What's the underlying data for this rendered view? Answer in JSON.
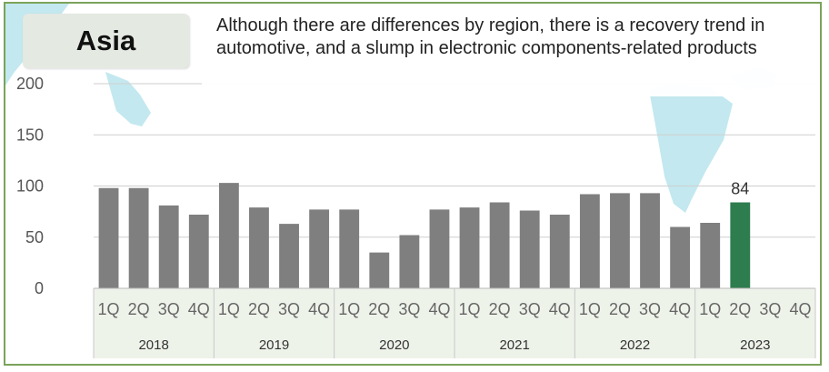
{
  "region": "Asia",
  "summary": "Although there are differences by region, there is a recovery trend in automotive, and a slump in electronic components-related products",
  "colors": {
    "bar": "#7f7f7f",
    "highlight": "#2e7d4f",
    "grid": "#cfcfcf",
    "frame": "#7aa35a",
    "map_water": "#b8e4ec"
  },
  "chart_data": {
    "type": "bar",
    "title": "",
    "xlabel": "",
    "ylabel": "",
    "ylim": [
      0,
      200
    ],
    "yticks": [
      0,
      50,
      100,
      150,
      200
    ],
    "grid": true,
    "years": [
      "2018",
      "2019",
      "2020",
      "2021",
      "2022",
      "2023"
    ],
    "quarters": [
      "1Q",
      "2Q",
      "3Q",
      "4Q"
    ],
    "values": [
      [
        98,
        98,
        81,
        72
      ],
      [
        103,
        79,
        63,
        77
      ],
      [
        77,
        35,
        52,
        77
      ],
      [
        79,
        84,
        76,
        72
      ],
      [
        92,
        93,
        93,
        60
      ],
      [
        64,
        84,
        null,
        null
      ]
    ],
    "highlight": {
      "year": "2023",
      "quarter": "2Q",
      "value": 84
    },
    "data_labels": [
      {
        "year": "2023",
        "quarter": "2Q",
        "text": "84"
      }
    ]
  }
}
